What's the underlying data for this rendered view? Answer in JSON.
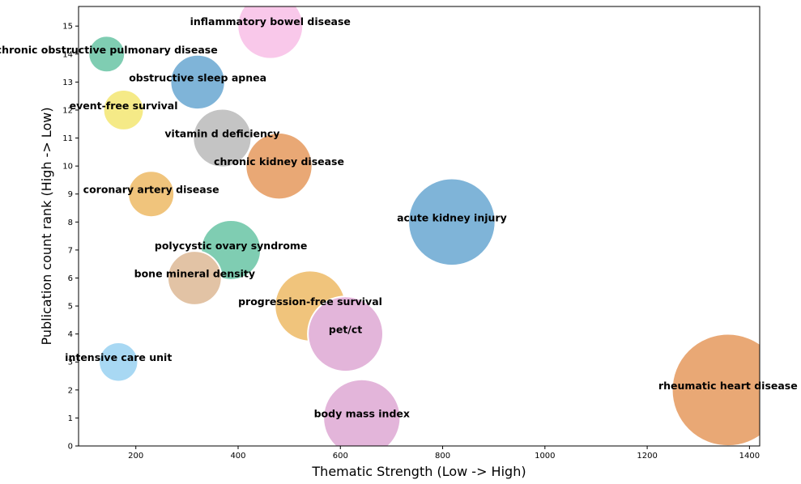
{
  "chart_data": {
    "type": "scatter",
    "xlabel": "Thematic Strength (Low -> High)",
    "ylabel": "Publication count rank (High -> Low)",
    "xlim": [
      88,
      1420
    ],
    "ylim": [
      0,
      15.7
    ],
    "xticks": [
      200,
      400,
      600,
      800,
      1000,
      1200,
      1400
    ],
    "yticks": [
      0,
      1,
      2,
      3,
      4,
      5,
      6,
      7,
      8,
      9,
      10,
      11,
      12,
      13,
      14,
      15
    ],
    "grid": false,
    "points": [
      {
        "label": "inflammatory bowel disease",
        "x": 463,
        "y": 15,
        "size": 463,
        "color": "#f9c8ea"
      },
      {
        "label": "chronic obstructive pulmonary disease",
        "x": 143,
        "y": 14,
        "size": 143,
        "color": "#7fcdb2"
      },
      {
        "label": "obstructive sleep apnea",
        "x": 321,
        "y": 13,
        "size": 321,
        "color": "#7fb4d8"
      },
      {
        "label": "event-free survival",
        "x": 176,
        "y": 12,
        "size": 176,
        "color": "#f5ea87"
      },
      {
        "label": "vitamin d deficiency",
        "x": 369,
        "y": 11,
        "size": 369,
        "color": "#c4c4c4"
      },
      {
        "label": "chronic kidney disease",
        "x": 480,
        "y": 10,
        "size": 480,
        "color": "#e9a875"
      },
      {
        "label": "coronary artery disease",
        "x": 230,
        "y": 9,
        "size": 230,
        "color": "#f0c47c"
      },
      {
        "label": "acute kidney injury",
        "x": 818,
        "y": 8,
        "size": 818,
        "color": "#7fb4d8"
      },
      {
        "label": "polycystic ovary syndrome",
        "x": 386,
        "y": 7,
        "size": 386,
        "color": "#7fcdb2"
      },
      {
        "label": "bone mineral density",
        "x": 315,
        "y": 6,
        "size": 315,
        "color": "#e2c3a5"
      },
      {
        "label": "progression-free survival",
        "x": 541,
        "y": 5,
        "size": 541,
        "color": "#f0c47c"
      },
      {
        "label": "pet/ct",
        "x": 610,
        "y": 4,
        "size": 610,
        "color": "#e3b5da"
      },
      {
        "label": "intensive care unit",
        "x": 166,
        "y": 3,
        "size": 166,
        "color": "#a8d8f3"
      },
      {
        "label": "rheumatic heart disease",
        "x": 1358,
        "y": 2,
        "size": 1358,
        "color": "#e9a875"
      },
      {
        "label": "body mass index",
        "x": 642,
        "y": 1,
        "size": 642,
        "color": "#e3b5da"
      }
    ]
  }
}
